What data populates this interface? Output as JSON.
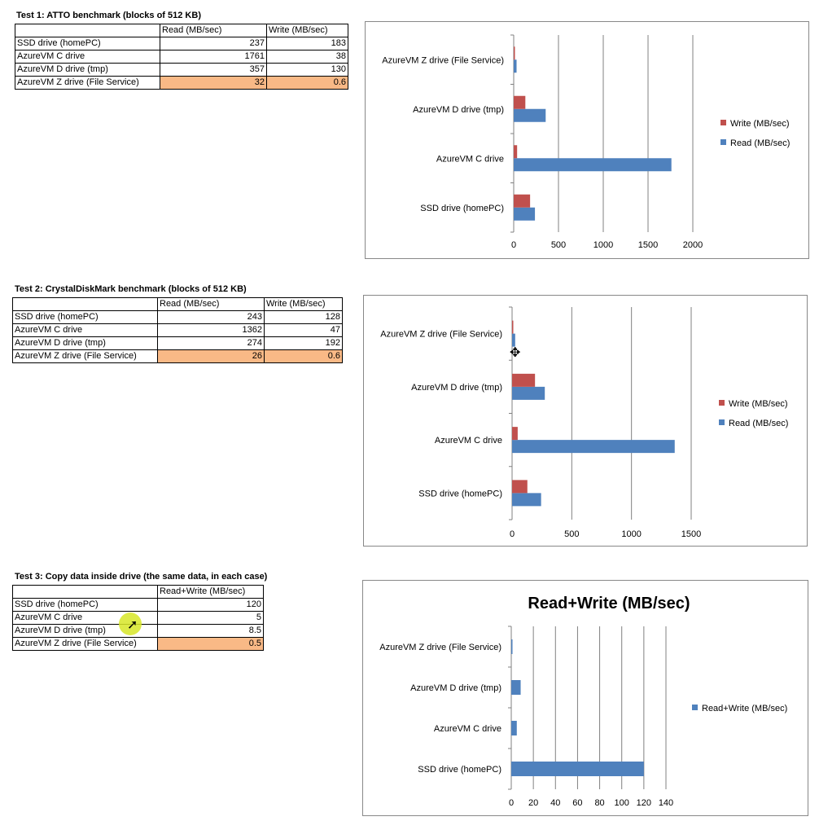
{
  "tests": [
    {
      "title": "Test 1: ATTO  benchmark (blocks of 512 KB)",
      "headers": [
        "",
        "Read (MB/sec)",
        "Write (MB/sec)"
      ],
      "rows": [
        {
          "label": "SSD drive (homePC)",
          "values": [
            "237",
            "183"
          ]
        },
        {
          "label": "AzureVM C drive",
          "values": [
            "1761",
            "38"
          ]
        },
        {
          "label": "AzureVM D drive (tmp)",
          "values": [
            "357",
            "130"
          ]
        },
        {
          "label": "AzureVM Z drive (File Service)",
          "values": [
            "32",
            "0.6"
          ]
        }
      ]
    },
    {
      "title": "Test 2: CrystalDiskMark benchmark (blocks of 512 KB)",
      "headers": [
        "",
        "Read (MB/sec)",
        "Write (MB/sec)"
      ],
      "rows": [
        {
          "label": "SSD drive (homePC)",
          "values": [
            "243",
            "128"
          ]
        },
        {
          "label": "AzureVM C drive",
          "values": [
            "1362",
            "47"
          ]
        },
        {
          "label": "AzureVM D drive (tmp)",
          "values": [
            "274",
            "192"
          ]
        },
        {
          "label": "AzureVM Z drive (File Service)",
          "values": [
            "26",
            "0.6"
          ]
        }
      ]
    },
    {
      "title": "Test 3: Copy data inside drive (the same data, in each case)",
      "headers": [
        "",
        "Read+Write (MB/sec)"
      ],
      "rows": [
        {
          "label": "SSD drive (homePC)",
          "values": [
            "120"
          ]
        },
        {
          "label": "AzureVM C drive",
          "values": [
            "5"
          ]
        },
        {
          "label": "AzureVM D drive (tmp)",
          "values": [
            "8.5"
          ]
        },
        {
          "label": "AzureVM Z drive (File Service)",
          "values": [
            "0.5"
          ]
        }
      ]
    }
  ],
  "chart_data": [
    {
      "type": "bar",
      "orientation": "horizontal",
      "title": "",
      "categories": [
        "SSD drive (homePC)",
        "AzureVM C drive",
        "AzureVM D drive (tmp)",
        "AzureVM Z drive (File Service)"
      ],
      "series": [
        {
          "name": "Read (MB/sec)",
          "values": [
            237,
            1761,
            357,
            32
          ],
          "color": "#4f81bd"
        },
        {
          "name": "Write (MB/sec)",
          "values": [
            183,
            38,
            130,
            0.6
          ],
          "color": "#c0504d"
        }
      ],
      "xlim": [
        0,
        2000
      ],
      "ticks": [
        0,
        500,
        1000,
        1500,
        2000
      ],
      "grid": "vertical",
      "legend": "right"
    },
    {
      "type": "bar",
      "orientation": "horizontal",
      "title": "",
      "categories": [
        "SSD drive (homePC)",
        "AzureVM C drive",
        "AzureVM D drive (tmp)",
        "AzureVM Z drive (File Service)"
      ],
      "series": [
        {
          "name": "Read (MB/sec)",
          "values": [
            243,
            1362,
            274,
            26
          ],
          "color": "#4f81bd"
        },
        {
          "name": "Write (MB/sec)",
          "values": [
            128,
            47,
            192,
            0.6
          ],
          "color": "#c0504d"
        }
      ],
      "xlim": [
        0,
        1500
      ],
      "ticks": [
        0,
        500,
        1000,
        1500
      ],
      "grid": "vertical",
      "legend": "right"
    },
    {
      "type": "bar",
      "orientation": "horizontal",
      "title": "Read+Write (MB/sec)",
      "categories": [
        "SSD drive (homePC)",
        "AzureVM C drive",
        "AzureVM D drive (tmp)",
        "AzureVM Z drive (File Service)"
      ],
      "series": [
        {
          "name": "Read+Write (MB/sec)",
          "values": [
            120,
            5,
            8.5,
            0.5
          ],
          "color": "#4f81bd"
        }
      ],
      "xlim": [
        0,
        140
      ],
      "ticks": [
        0,
        20,
        40,
        60,
        80,
        100,
        120,
        140
      ],
      "grid": "vertical",
      "legend": "right"
    }
  ]
}
